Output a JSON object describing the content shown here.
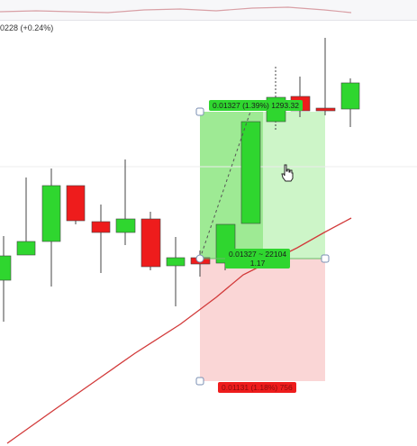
{
  "header": {
    "price_change": "0228 (+0.24%)"
  },
  "colors": {
    "bull": "#2fd62f",
    "bear": "#ee1c1c",
    "wick": "#444444",
    "ma_line": "#d23a3a",
    "profit_zone": "#cdf5c8",
    "profit_zone_dark": "#9eea94",
    "loss_zone": "#fad6d6"
  },
  "position_tool": {
    "type": "long-position",
    "target_label": "0.01327 (1.39%) 1293.32",
    "mid_label_line1": "0.01327 ~ 22104",
    "mid_label_line2": "1.17",
    "stop_label": "0.01131 (1.18%) 756"
  },
  "icons": {
    "cursor": "hand-pointer-icon"
  }
}
